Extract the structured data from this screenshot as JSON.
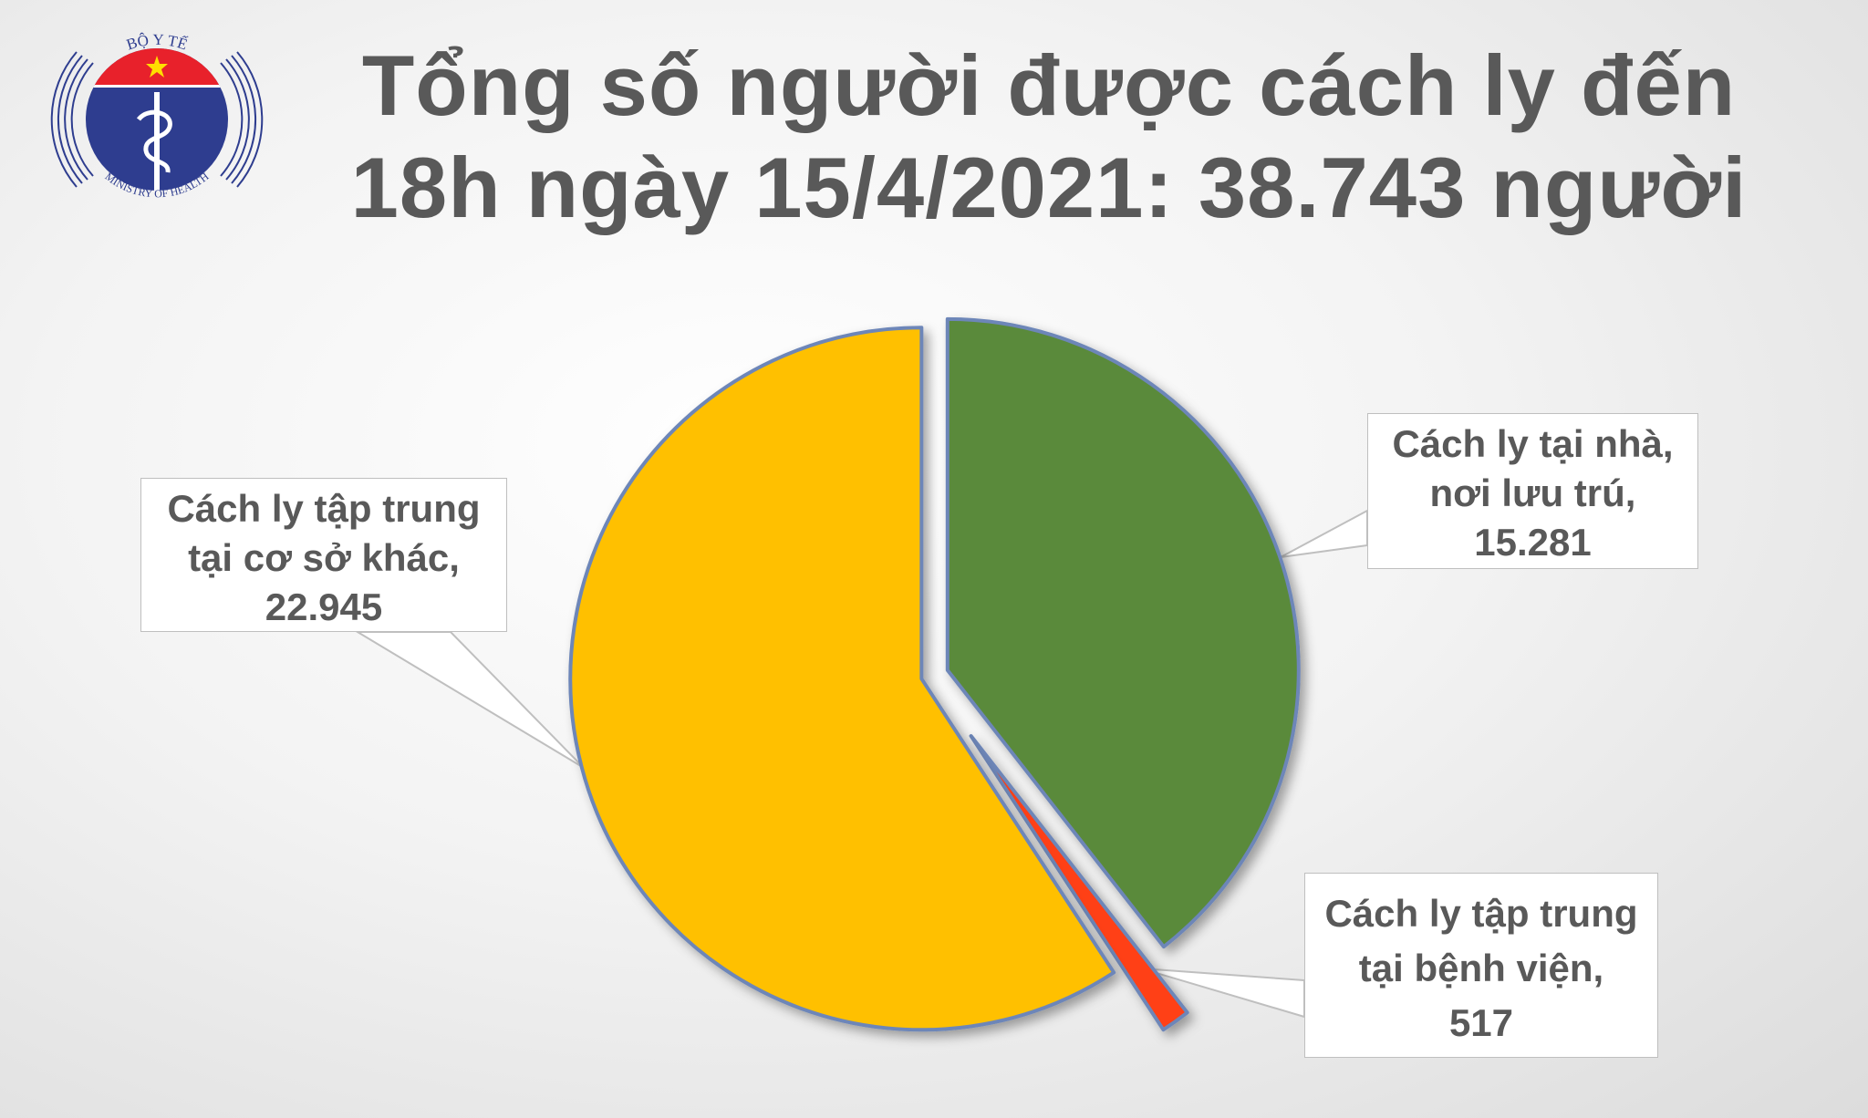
{
  "title": {
    "line1": "Tổng số người được cách ly đến",
    "line2": "18h ngày 15/4/2021: 38.743 người"
  },
  "logo": {
    "top_text": "BỘ Y TẾ",
    "bottom_text": "MINISTRY OF HEALTH"
  },
  "chart_data": {
    "type": "pie",
    "slices": [
      {
        "label": "Cách ly tại nhà, nơi lưu trú",
        "value": 15281,
        "value_text": "15.281",
        "color": "#5a8a3a",
        "line1": "Cách ly tại nhà,",
        "line2": "nơi lưu trú,"
      },
      {
        "label": "Cách ly tập trung tại bệnh viện",
        "value": 517,
        "value_text": "517",
        "color": "#ff4013",
        "line1": "Cách ly tập trung",
        "line2": "tại bệnh viện,"
      },
      {
        "label": "Cách ly tập trung tại cơ sở khác",
        "value": 22945,
        "value_text": "22.945",
        "color": "#ffc000",
        "line1": "Cách ly tập trung",
        "line2": "tại cơ sở khác,"
      }
    ],
    "total": 38743,
    "start_angle": "top, clockwise",
    "exploded": true
  }
}
